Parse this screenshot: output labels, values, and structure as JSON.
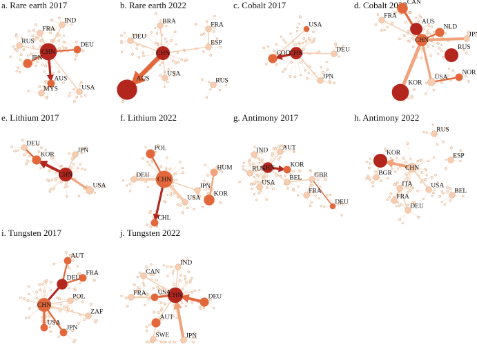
{
  "colors": {
    "dark": "#b3261e",
    "mid": "#e2683c",
    "light": "#f1a27a",
    "pale": "#f6cdb0",
    "faint": "#fbe6d6",
    "small_node_fill": "#fbead9",
    "small_node_stroke": "#d9a27d"
  },
  "panels": [
    {
      "id": "rare-earth-2017",
      "title": "a. Rare earth 2017",
      "nodes": [
        {
          "label": "CHN",
          "role": "hub",
          "size": 9,
          "color": "dark"
        },
        {
          "label": "IND",
          "size": 2,
          "color": "pale"
        },
        {
          "label": "FRA",
          "size": 2,
          "color": "pale"
        },
        {
          "label": "RUS",
          "size": 2,
          "color": "pale"
        },
        {
          "label": "DEU",
          "size": 3,
          "color": "mid"
        },
        {
          "label": "JPN",
          "size": 4,
          "color": "mid"
        },
        {
          "label": "AUS",
          "size": 3,
          "color": "mid"
        },
        {
          "label": "MYS",
          "size": 2,
          "color": "pale"
        },
        {
          "label": "USA",
          "size": 2,
          "color": "pale"
        }
      ],
      "edges": [
        {
          "from": "CHN",
          "to": "AUS",
          "weight": 3,
          "color": "dark",
          "arrow": true
        },
        {
          "from": "CHN",
          "to": "JPN",
          "weight": 2,
          "color": "mid"
        },
        {
          "from": "CHN",
          "to": "DEU",
          "weight": 2,
          "color": "mid"
        },
        {
          "from": "CHN",
          "to": "USA",
          "weight": 1,
          "color": "pale"
        },
        {
          "from": "CHN",
          "to": "FRA",
          "weight": 1,
          "color": "pale"
        },
        {
          "from": "CHN",
          "to": "RUS",
          "weight": 1,
          "color": "pale"
        },
        {
          "from": "CHN",
          "to": "IND",
          "weight": 1,
          "color": "pale"
        },
        {
          "from": "AUS",
          "to": "MYS",
          "weight": 1,
          "color": "pale"
        }
      ]
    },
    {
      "id": "rare-earth-2022",
      "title": "b. Rare earth 2022",
      "nodes": [
        {
          "label": "CHN",
          "role": "hub",
          "size": 7,
          "color": "dark"
        },
        {
          "label": "BRA",
          "size": 2,
          "color": "pale"
        },
        {
          "label": "DEU",
          "size": 2,
          "color": "pale"
        },
        {
          "label": "FRA",
          "size": 2,
          "color": "pale"
        },
        {
          "label": "ESP",
          "size": 2,
          "color": "pale"
        },
        {
          "label": "USA",
          "size": 2,
          "color": "pale"
        },
        {
          "label": "RUS",
          "size": 2,
          "color": "pale"
        },
        {
          "label": "AUS",
          "size": 11,
          "color": "dark"
        }
      ],
      "edges": [
        {
          "from": "CHN",
          "to": "AUS",
          "weight": 7,
          "color": "mid",
          "arrow": true
        },
        {
          "from": "CHN",
          "to": "ESP",
          "weight": 1,
          "color": "pale"
        },
        {
          "from": "CHN",
          "to": "DEU",
          "weight": 1,
          "color": "pale"
        },
        {
          "from": "CHN",
          "to": "BRA",
          "weight": 1,
          "color": "pale"
        },
        {
          "from": "CHN",
          "to": "USA",
          "weight": 1,
          "color": "pale"
        },
        {
          "from": "ESP",
          "to": "FRA",
          "weight": 1,
          "color": "pale"
        }
      ]
    },
    {
      "id": "cobalt-2017",
      "title": "c. Cobalt 2017",
      "nodes": [
        {
          "label": "CHN",
          "role": "hub",
          "size": 6,
          "color": "dark"
        },
        {
          "label": "USA",
          "size": 2,
          "color": "mid"
        },
        {
          "label": "COD",
          "size": 4,
          "color": "mid"
        },
        {
          "label": "DEU",
          "size": 2,
          "color": "pale"
        },
        {
          "label": "JPN",
          "size": 2,
          "color": "pale"
        }
      ],
      "edges": [
        {
          "from": "CHN",
          "to": "COD",
          "weight": 3,
          "color": "dark",
          "arrow": true
        },
        {
          "from": "CHN",
          "to": "JPN",
          "weight": 1,
          "color": "pale"
        },
        {
          "from": "CHN",
          "to": "DEU",
          "weight": 1,
          "color": "pale"
        },
        {
          "from": "COD",
          "to": "USA",
          "weight": 1,
          "color": "pale"
        }
      ]
    },
    {
      "id": "cobalt-2022",
      "title": "d. Cobalt 2022",
      "nodes": [
        {
          "label": "CHN",
          "role": "hub",
          "size": 6,
          "color": "mid"
        },
        {
          "label": "CAN",
          "size": 5,
          "color": "mid"
        },
        {
          "label": "FRA",
          "size": 2,
          "color": "pale"
        },
        {
          "label": "AUS",
          "size": 6,
          "color": "dark"
        },
        {
          "label": "NLD",
          "size": 4,
          "color": "mid"
        },
        {
          "label": "JPN",
          "size": 2,
          "color": "pale"
        },
        {
          "label": "RUS",
          "size": 7,
          "color": "dark"
        },
        {
          "label": "KOR",
          "size": 9,
          "color": "dark"
        },
        {
          "label": "NOR",
          "size": 3,
          "color": "mid"
        },
        {
          "label": "USA",
          "size": 3,
          "color": "pale"
        }
      ],
      "edges": [
        {
          "from": "CHN",
          "to": "KOR",
          "weight": 5,
          "color": "light"
        },
        {
          "from": "CHN",
          "to": "JPN",
          "weight": 4,
          "color": "light"
        },
        {
          "from": "CHN",
          "to": "CAN",
          "weight": 3,
          "color": "mid"
        },
        {
          "from": "CHN",
          "to": "AUS",
          "weight": 2,
          "color": "mid"
        },
        {
          "from": "CHN",
          "to": "NLD",
          "weight": 2,
          "color": "mid"
        },
        {
          "from": "CHN",
          "to": "FRA",
          "weight": 1,
          "color": "pale"
        },
        {
          "from": "CHN",
          "to": "USA",
          "weight": 3,
          "color": "light"
        },
        {
          "from": "USA",
          "to": "NOR",
          "weight": 2,
          "color": "mid"
        }
      ]
    },
    {
      "id": "lithium-2017",
      "title": "e. Lithium 2017",
      "nodes": [
        {
          "label": "CHN",
          "role": "hub",
          "size": 7,
          "color": "dark"
        },
        {
          "label": "DEU",
          "size": 2,
          "color": "pale"
        },
        {
          "label": "KOR",
          "size": 4,
          "color": "mid"
        },
        {
          "label": "JPN",
          "size": 2,
          "color": "pale"
        },
        {
          "label": "USA",
          "size": 3,
          "color": "pale"
        }
      ],
      "edges": [
        {
          "from": "CHN",
          "to": "KOR",
          "weight": 4,
          "color": "dark",
          "arrow": true
        },
        {
          "from": "KOR",
          "to": "DEU",
          "weight": 2,
          "color": "mid"
        },
        {
          "from": "CHN",
          "to": "USA",
          "weight": 3,
          "color": "light"
        },
        {
          "from": "CHN",
          "to": "JPN",
          "weight": 1,
          "color": "pale"
        }
      ]
    },
    {
      "id": "lithium-2022",
      "title": "f. Lithium 2022",
      "nodes": [
        {
          "label": "CHN",
          "role": "hub",
          "size": 9,
          "color": "mid"
        },
        {
          "label": "POL",
          "size": 4,
          "color": "mid"
        },
        {
          "label": "DEU",
          "size": 2,
          "color": "pale"
        },
        {
          "label": "JPN",
          "size": 2,
          "color": "pale"
        },
        {
          "label": "USA",
          "size": 2,
          "color": "pale"
        },
        {
          "label": "HUM",
          "size": 3,
          "color": "light"
        },
        {
          "label": "KOR",
          "size": 5,
          "color": "mid"
        },
        {
          "label": "CHL",
          "size": 3,
          "color": "mid"
        }
      ],
      "edges": [
        {
          "from": "CHN",
          "to": "CHL",
          "weight": 3,
          "color": "dark",
          "arrow": true
        },
        {
          "from": "CHN",
          "to": "DEU",
          "weight": 4,
          "color": "pale"
        },
        {
          "from": "CHN",
          "to": "USA",
          "weight": 4,
          "color": "pale"
        },
        {
          "from": "CHN",
          "to": "POL",
          "weight": 2,
          "color": "mid"
        },
        {
          "from": "CHN",
          "to": "JPN",
          "weight": 1,
          "color": "pale"
        },
        {
          "from": "HUM",
          "to": "KOR",
          "weight": 2,
          "color": "light"
        }
      ]
    },
    {
      "id": "antimony-2017",
      "title": "g. Antimony 2017",
      "nodes": [
        {
          "label": "CHN",
          "role": "hub",
          "size": 5,
          "color": "dark"
        },
        {
          "label": "IND",
          "size": 2,
          "color": "pale"
        },
        {
          "label": "AUT",
          "size": 2,
          "color": "pale"
        },
        {
          "label": "RUS",
          "size": 2,
          "color": "pale"
        },
        {
          "label": "KOR",
          "size": 3,
          "color": "mid"
        },
        {
          "label": "USA",
          "size": 2,
          "color": "pale"
        },
        {
          "label": "BEL",
          "size": 2,
          "color": "pale"
        },
        {
          "label": "GBR",
          "size": 2,
          "color": "pale"
        },
        {
          "label": "FRA",
          "size": 2,
          "color": "pale"
        },
        {
          "label": "DEU",
          "size": 2,
          "color": "mid"
        }
      ],
      "edges": [
        {
          "from": "CHN",
          "to": "KOR",
          "weight": 3,
          "color": "dark",
          "arrow": true
        },
        {
          "from": "CHN",
          "to": "BEL",
          "weight": 1,
          "color": "pale"
        },
        {
          "from": "CHN",
          "to": "USA",
          "weight": 1,
          "color": "pale"
        },
        {
          "from": "CHN",
          "to": "AUT",
          "weight": 1,
          "color": "pale"
        },
        {
          "from": "CHN",
          "to": "IND",
          "weight": 1,
          "color": "pale"
        },
        {
          "from": "CHN",
          "to": "RUS",
          "weight": 1,
          "color": "pale"
        },
        {
          "from": "BEL",
          "to": "GBR",
          "weight": 1,
          "color": "pale"
        },
        {
          "from": "GBR",
          "to": "DEU",
          "weight": 1,
          "color": "mid"
        },
        {
          "from": "GBR",
          "to": "FRA",
          "weight": 1,
          "color": "pale"
        }
      ]
    },
    {
      "id": "antimony-2022",
      "title": "h. Antimony 2022",
      "nodes": [
        {
          "label": "CHN",
          "role": "hub",
          "size": 4,
          "color": "pale"
        },
        {
          "label": "RUS",
          "size": 2,
          "color": "pale"
        },
        {
          "label": "KOR",
          "size": 7,
          "color": "dark"
        },
        {
          "label": "ESP",
          "size": 2,
          "color": "pale"
        },
        {
          "label": "BGR",
          "size": 2,
          "color": "pale"
        },
        {
          "label": "ITA",
          "size": 2,
          "color": "pale"
        },
        {
          "label": "USA",
          "size": 2,
          "color": "pale"
        },
        {
          "label": "BEL",
          "size": 2,
          "color": "pale"
        },
        {
          "label": "FRA",
          "size": 2,
          "color": "pale"
        },
        {
          "label": "DEU",
          "size": 2,
          "color": "pale"
        }
      ],
      "edges": [
        {
          "from": "CHN",
          "to": "KOR",
          "weight": 4,
          "color": "light",
          "arrow": true
        },
        {
          "from": "CHN",
          "to": "ITA",
          "weight": 1,
          "color": "pale"
        },
        {
          "from": "CHN",
          "to": "USA",
          "weight": 1,
          "color": "pale"
        },
        {
          "from": "KOR",
          "to": "BGR",
          "weight": 1,
          "color": "pale"
        },
        {
          "from": "ITA",
          "to": "FRA",
          "weight": 1,
          "color": "pale"
        },
        {
          "from": "ITA",
          "to": "DEU",
          "weight": 1,
          "color": "pale"
        }
      ]
    },
    {
      "id": "tungsten-2017",
      "title": "i. Tungsten 2017",
      "nodes": [
        {
          "label": "CHN",
          "role": "hub",
          "size": 7,
          "color": "mid"
        },
        {
          "label": "DEU",
          "size": 5,
          "color": "dark"
        },
        {
          "label": "AUT",
          "size": 3,
          "color": "mid"
        },
        {
          "label": "FRA",
          "size": 3,
          "color": "mid"
        },
        {
          "label": "POL",
          "size": 2,
          "color": "pale"
        },
        {
          "label": "ZAF",
          "size": 2,
          "color": "pale"
        },
        {
          "label": "USA",
          "size": 3,
          "color": "mid"
        },
        {
          "label": "JPN",
          "size": 3,
          "color": "mid"
        }
      ],
      "edges": [
        {
          "from": "CHN",
          "to": "DEU",
          "weight": 3,
          "color": "dark"
        },
        {
          "from": "DEU",
          "to": "AUT",
          "weight": 2,
          "color": "mid"
        },
        {
          "from": "DEU",
          "to": "FRA",
          "weight": 2,
          "color": "mid"
        },
        {
          "from": "CHN",
          "to": "USA",
          "weight": 3,
          "color": "mid"
        },
        {
          "from": "CHN",
          "to": "JPN",
          "weight": 2,
          "color": "mid"
        },
        {
          "from": "CHN",
          "to": "POL",
          "weight": 1,
          "color": "pale"
        },
        {
          "from": "CHN",
          "to": "ZAF",
          "weight": 1,
          "color": "pale"
        }
      ]
    },
    {
      "id": "tungsten-2022",
      "title": "j. Tungsten 2022",
      "nodes": [
        {
          "label": "CHN",
          "role": "hub",
          "size": 8,
          "color": "dark"
        },
        {
          "label": "IND",
          "size": 2,
          "color": "pale"
        },
        {
          "label": "CAN",
          "size": 2,
          "color": "pale"
        },
        {
          "label": "FRA",
          "size": 2,
          "color": "pale"
        },
        {
          "label": "USA",
          "size": 3,
          "color": "mid"
        },
        {
          "label": "DEU",
          "size": 4,
          "color": "mid"
        },
        {
          "label": "AUT",
          "size": 4,
          "color": "mid"
        },
        {
          "label": "SWE",
          "size": 2,
          "color": "pale"
        },
        {
          "label": "JPN",
          "size": 2,
          "color": "pale"
        }
      ],
      "edges": [
        {
          "from": "DEU",
          "to": "CHN",
          "weight": 4,
          "color": "mid",
          "arrow": true
        },
        {
          "from": "CHN",
          "to": "USA",
          "weight": 3,
          "color": "mid"
        },
        {
          "from": "USA",
          "to": "FRA",
          "weight": 2,
          "color": "pale"
        },
        {
          "from": "JPN",
          "to": "CHN",
          "weight": 4,
          "color": "light",
          "arrow": true
        },
        {
          "from": "CHN",
          "to": "CAN",
          "weight": 1,
          "color": "pale"
        },
        {
          "from": "CHN",
          "to": "IND",
          "weight": 1,
          "color": "pale"
        },
        {
          "from": "CHN",
          "to": "AUT",
          "weight": 1,
          "color": "pale"
        },
        {
          "from": "AUT",
          "to": "SWE",
          "weight": 1,
          "color": "pale"
        }
      ]
    }
  ]
}
